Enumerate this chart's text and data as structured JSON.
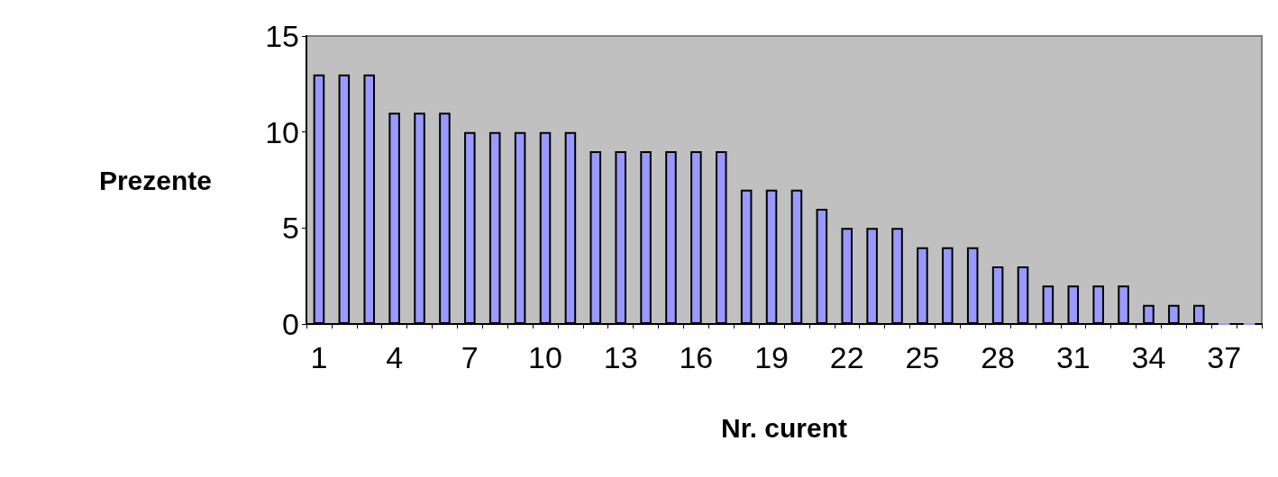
{
  "chart_data": {
    "type": "bar",
    "xlabel": "Nr. curent",
    "ylabel": "Prezente",
    "categories": [
      "1",
      null,
      null,
      "4",
      null,
      null,
      "7",
      null,
      null,
      "10",
      null,
      null,
      "13",
      null,
      null,
      "16",
      null,
      null,
      "19",
      null,
      null,
      "22",
      null,
      null,
      "25",
      null,
      null,
      "28",
      null,
      null,
      "31",
      null,
      null,
      "34",
      null,
      null,
      "37",
      null
    ],
    "values": [
      13,
      13,
      13,
      11,
      11,
      11,
      10,
      10,
      10,
      10,
      10,
      9,
      9,
      9,
      9,
      9,
      9,
      7,
      7,
      7,
      6,
      5,
      5,
      5,
      4,
      4,
      4,
      3,
      3,
      2,
      2,
      2,
      2,
      1,
      1,
      1,
      0,
      0
    ],
    "color": "#9999ff",
    "ylim": [
      0,
      15
    ],
    "yticks": [
      0,
      5,
      10,
      15
    ],
    "grid": false
  }
}
